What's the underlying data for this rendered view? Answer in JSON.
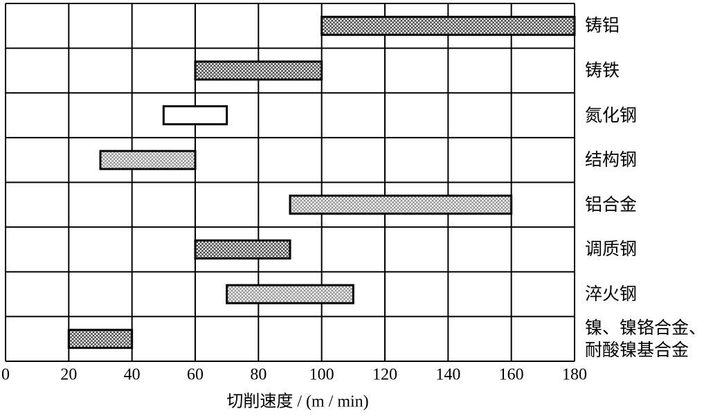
{
  "chart_data": {
    "type": "range-bar",
    "categories": [
      "铸铝",
      "铸铁",
      "氮化钢",
      "结构钢",
      "铝合金",
      "调质钢",
      "淬火钢",
      "镍、镍铬合金、耐酸镍基合金"
    ],
    "values": [
      [
        100,
        180
      ],
      [
        60,
        100
      ],
      [
        50,
        70
      ],
      [
        30,
        60
      ],
      [
        90,
        160
      ],
      [
        60,
        90
      ],
      [
        70,
        110
      ],
      [
        20,
        40
      ]
    ],
    "colors": [
      "#333333",
      "#333333",
      "#ffffff",
      "#888888",
      "#888888",
      "#333333",
      "#888888",
      "#333333"
    ],
    "xlabel": "切削速度 / (m / min)",
    "xlim": [
      0,
      180
    ],
    "xticks": [
      0,
      20,
      40,
      60,
      80,
      100,
      120,
      140,
      160,
      180
    ],
    "grid": true
  }
}
